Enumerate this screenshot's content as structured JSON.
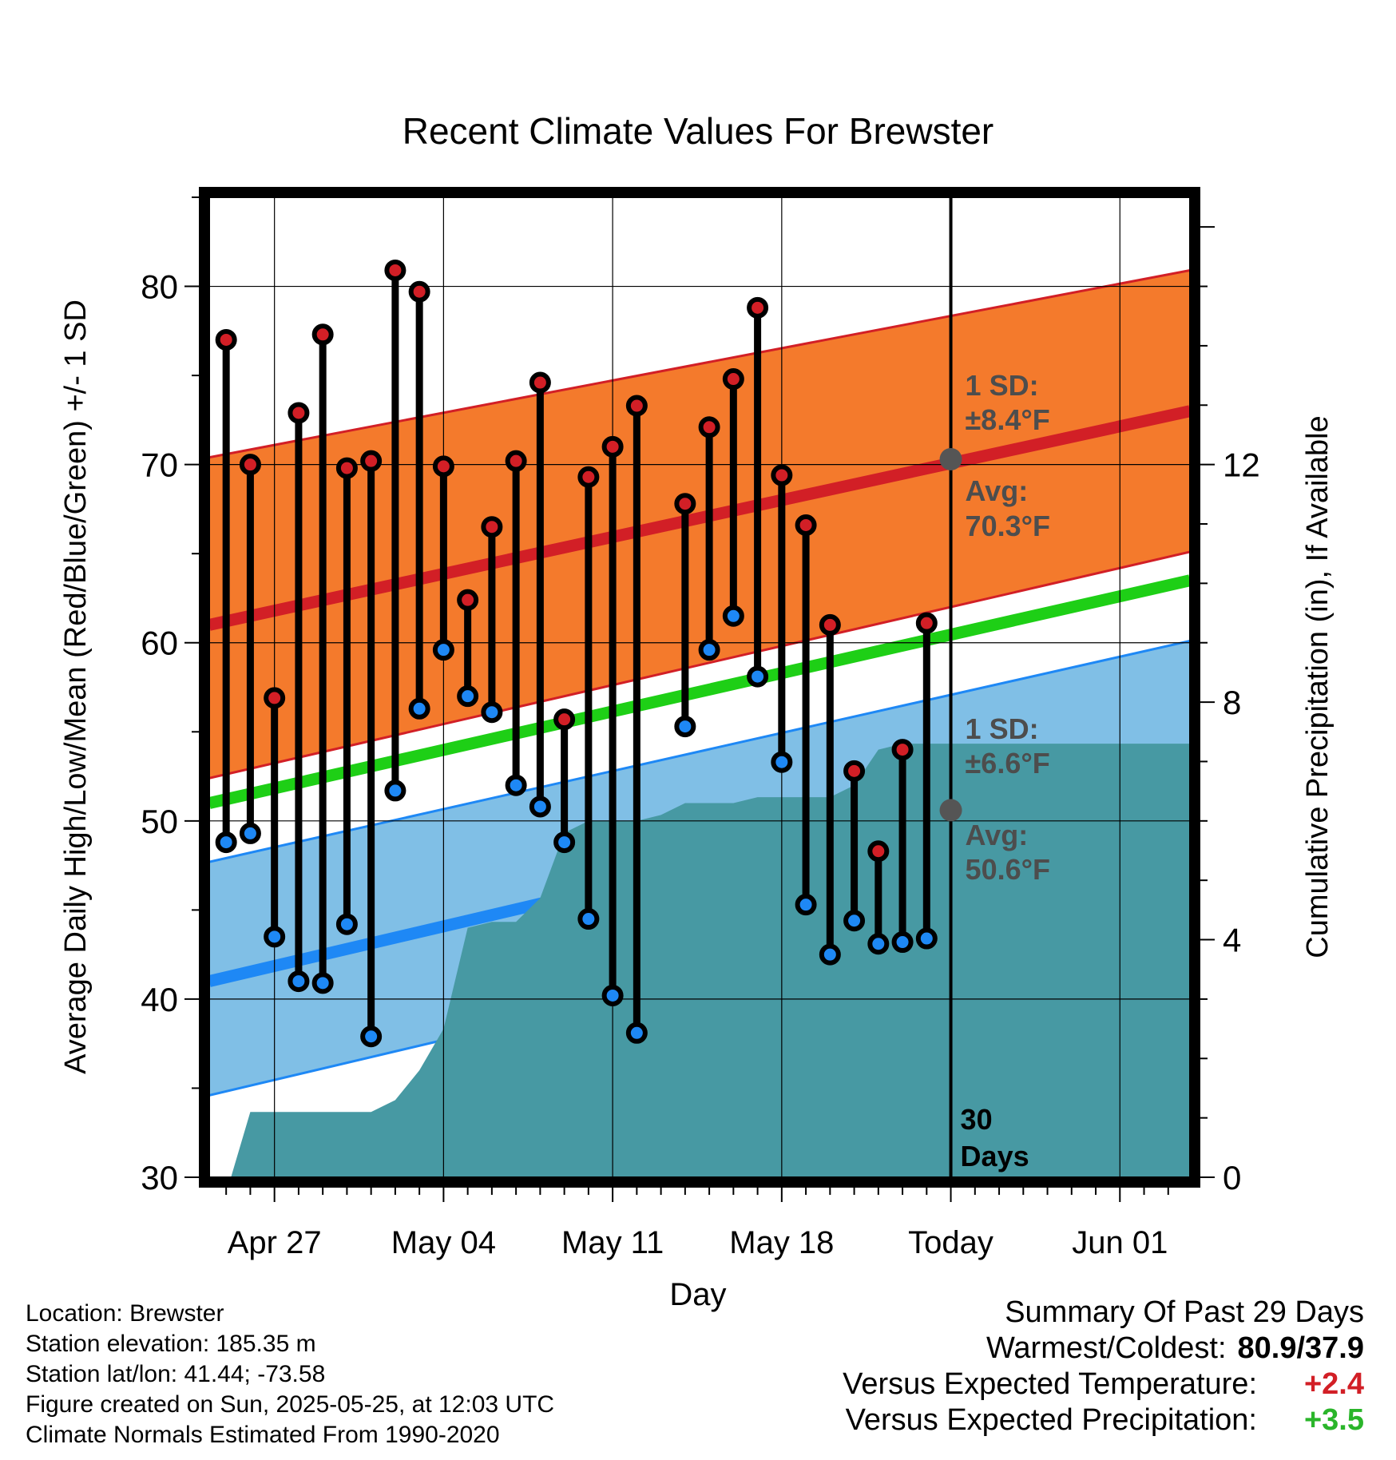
{
  "chart_data": {
    "type": "line",
    "title": "Recent Climate Values For Brewster",
    "xlabel": "Day",
    "ylabel_left": "Average Daily High/Low/Mean (Red/Blue/Green) +/- 1 SD",
    "ylabel_right": "Cumulative Precipitation (in), If Available",
    "ylim": [
      30,
      85
    ],
    "y_ticks": [
      30,
      40,
      50,
      60,
      70,
      80
    ],
    "y2lim": [
      0,
      16.5
    ],
    "y2_ticks": [
      0,
      4,
      8,
      12
    ],
    "x_ticks": [
      {
        "day": 3,
        "label": "Apr 27"
      },
      {
        "day": 10,
        "label": "May 04"
      },
      {
        "day": 17,
        "label": "May 11"
      },
      {
        "day": 24,
        "label": "May 18"
      },
      {
        "day": 31,
        "label": "Today"
      },
      {
        "day": 38,
        "label": "Jun 01"
      }
    ],
    "x_range": [
      0.3,
      40.9
    ],
    "today_day": 31,
    "today_label": "30 Days",
    "normals": {
      "high_avg": [
        61.0,
        73.0
      ],
      "high_upper": [
        70.4,
        80.9
      ],
      "high_lower": [
        52.4,
        65.1
      ],
      "low_avg": [
        41.0,
        53.9
      ],
      "low_upper": [
        47.7,
        60.1
      ],
      "low_lower": [
        34.6,
        47.6
      ],
      "mean": [
        51.0,
        63.5
      ]
    },
    "high_annotation": {
      "sd_label": "1 SD:",
      "sd_value": "±8.4°F",
      "avg_label": "Avg:",
      "avg_value": "70.3°F",
      "avg": 70.3
    },
    "low_annotation": {
      "sd_label": "1 SD:",
      "sd_value": "±6.6°F",
      "avg_label": "Avg:",
      "avg_value": "50.6°F",
      "avg": 50.6
    },
    "observed": [
      {
        "day": 1,
        "high": 77.0,
        "low": 48.8
      },
      {
        "day": 2,
        "high": 70.0,
        "low": 49.3
      },
      {
        "day": 3,
        "high": 56.9,
        "low": 43.5
      },
      {
        "day": 4,
        "high": 72.9,
        "low": 41.0
      },
      {
        "day": 5,
        "high": 77.3,
        "low": 40.9
      },
      {
        "day": 6,
        "high": 69.8,
        "low": 44.2
      },
      {
        "day": 7,
        "high": 70.2,
        "low": 37.9
      },
      {
        "day": 8,
        "high": 80.9,
        "low": 51.7
      },
      {
        "day": 9,
        "high": 79.7,
        "low": 56.3
      },
      {
        "day": 10,
        "high": 69.9,
        "low": 59.6
      },
      {
        "day": 11,
        "high": 62.4,
        "low": 57.0
      },
      {
        "day": 12,
        "high": 66.5,
        "low": 56.1
      },
      {
        "day": 13,
        "high": 70.2,
        "low": 52.0
      },
      {
        "day": 14,
        "high": 74.6,
        "low": 50.8
      },
      {
        "day": 15,
        "high": 55.7,
        "low": 48.8
      },
      {
        "day": 16,
        "high": 69.3,
        "low": 44.5
      },
      {
        "day": 17,
        "high": 71.0,
        "low": 40.2
      },
      {
        "day": 18,
        "high": 73.3,
        "low": 38.1
      },
      {
        "day": 20,
        "high": 67.8,
        "low": 55.3
      },
      {
        "day": 21,
        "high": 72.1,
        "low": 59.6
      },
      {
        "day": 22,
        "high": 74.8,
        "low": 61.5
      },
      {
        "day": 23,
        "high": 78.8,
        "low": 58.1
      },
      {
        "day": 24,
        "high": 69.4,
        "low": 53.3
      },
      {
        "day": 25,
        "high": 66.6,
        "low": 45.3
      },
      {
        "day": 26,
        "high": 61.0,
        "low": 42.5
      },
      {
        "day": 27,
        "high": 52.8,
        "low": 44.4
      },
      {
        "day": 28,
        "high": 48.3,
        "low": 43.1
      },
      {
        "day": 29,
        "high": 54.0,
        "low": 43.2
      },
      {
        "day": 30,
        "high": 61.1,
        "low": 43.4
      }
    ],
    "precip_cumulative": [
      [
        1.2,
        0.0
      ],
      [
        2.0,
        1.1
      ],
      [
        3.0,
        1.1
      ],
      [
        4.0,
        1.1
      ],
      [
        5.0,
        1.1
      ],
      [
        6.0,
        1.1
      ],
      [
        7.0,
        1.1
      ],
      [
        8.0,
        1.3
      ],
      [
        9.0,
        1.8
      ],
      [
        10.0,
        2.5
      ],
      [
        11.0,
        4.2
      ],
      [
        12.0,
        4.3
      ],
      [
        13.0,
        4.3
      ],
      [
        14.0,
        4.7
      ],
      [
        15.0,
        5.8
      ],
      [
        16.0,
        6.0
      ],
      [
        17.0,
        6.0
      ],
      [
        18.0,
        6.0
      ],
      [
        19.0,
        6.1
      ],
      [
        20.0,
        6.3
      ],
      [
        21.0,
        6.3
      ],
      [
        22.0,
        6.3
      ],
      [
        23.0,
        6.4
      ],
      [
        24.0,
        6.4
      ],
      [
        25.0,
        6.4
      ],
      [
        26.0,
        6.4
      ],
      [
        27.0,
        6.6
      ],
      [
        28.0,
        7.2
      ],
      [
        29.0,
        7.3
      ],
      [
        40.9,
        7.3
      ]
    ],
    "colors": {
      "high_band": "#f47a2c",
      "high_line": "#d21f26",
      "low_band": "#80bfe6",
      "low_line": "#1e88f5",
      "mean_line": "#1ecf16",
      "precip": "#4799a3",
      "high_marker": "#d21f26",
      "low_marker": "#1e88f5",
      "annotation": "#4d4d4d"
    }
  },
  "info": {
    "location": "Location: Brewster",
    "elevation": "Station elevation: 185.35 m",
    "latlon": "Station lat/lon: 41.44; -73.58",
    "created": "Figure created on Sun, 2025-05-25, at 12:03 UTC",
    "normals": "Climate Normals Estimated From 1990-2020"
  },
  "summary": {
    "title": "Summary Of Past 29 Days",
    "warmest_coldest_label": "Warmest/Coldest:",
    "warmest_coldest_value": "80.9/37.9",
    "temp_label": "Versus Expected Temperature:",
    "temp_value": "+2.4",
    "precip_label": "Versus Expected Precipitation:",
    "precip_value": "+3.5",
    "temp_color": "#d21f26",
    "precip_color": "#2ab52a"
  }
}
